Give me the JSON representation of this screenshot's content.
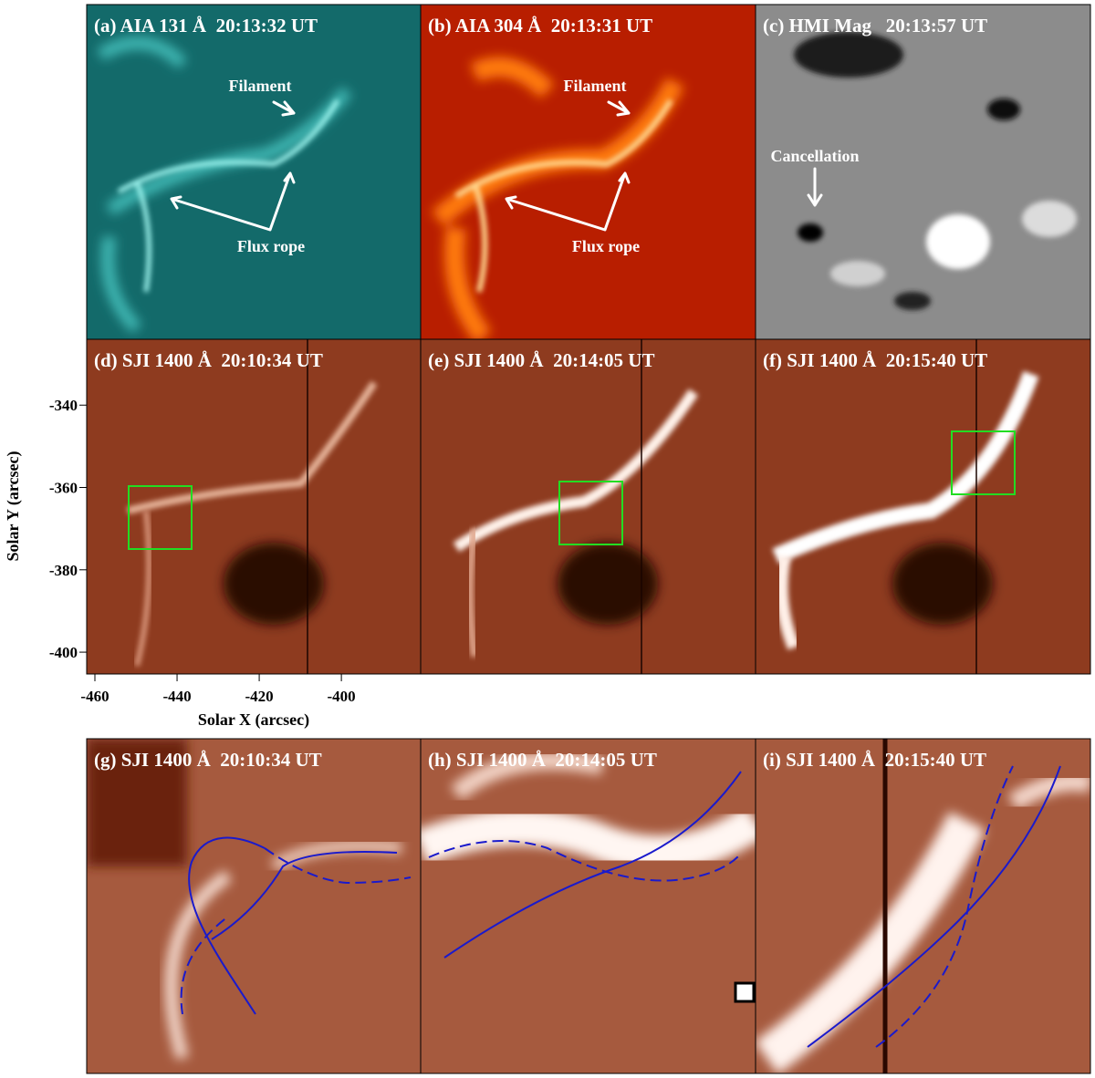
{
  "figure": {
    "panels": [
      {
        "label": "(a) AIA 131 Å  20:13:32 UT",
        "annotations": [
          "Filament",
          "Flux rope"
        ]
      },
      {
        "label": "(b) AIA 304 Å  20:13:31 UT",
        "annotations": [
          "Filament",
          "Flux rope"
        ]
      },
      {
        "label": "(c) HMI Mag   20:13:57 UT",
        "annotations": [
          "Cancellation"
        ]
      },
      {
        "label": "(d) SJI 1400 Å  20:10:34 UT"
      },
      {
        "label": "(e) SJI 1400 Å  20:14:05 UT"
      },
      {
        "label": "(f) SJI 1400 Å  20:15:40 UT"
      },
      {
        "label": "(g) SJI 1400 Å  20:10:34 UT"
      },
      {
        "label": "(h) SJI 1400 Å  20:14:05 UT"
      },
      {
        "label": "(i) SJI 1400 Å  20:15:40 UT"
      }
    ],
    "axes": {
      "x_label": "Solar X (arcsec)",
      "y_label": "Solar Y (arcsec)",
      "xlim": [
        -462,
        -380.7
      ],
      "ylim": [
        -405.3,
        -324
      ],
      "xticks": [
        -460,
        -440,
        -420,
        -400
      ],
      "yticks": [
        -340,
        -360,
        -380,
        -400
      ]
    }
  }
}
